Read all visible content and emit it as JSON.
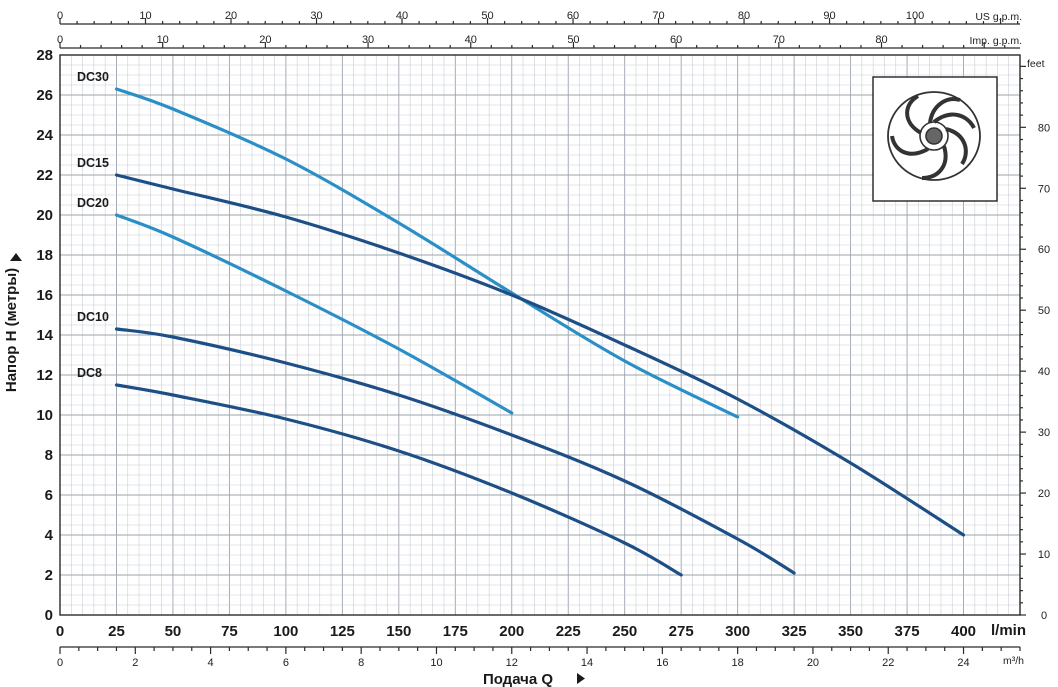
{
  "chart_data": {
    "type": "line",
    "title": "",
    "xlabel": "Подача Q",
    "ylabel": "Напор H (метры)",
    "grid": true,
    "xlim": [
      0,
      425
    ],
    "ylim": [
      0,
      28
    ],
    "x_unit": "l/min",
    "x_ticks": [
      0,
      25,
      50,
      75,
      100,
      125,
      150,
      175,
      200,
      225,
      250,
      275,
      300,
      325,
      350,
      375,
      400
    ],
    "y_ticks": [
      0,
      2,
      4,
      6,
      8,
      10,
      12,
      14,
      16,
      18,
      20,
      22,
      24,
      26,
      28
    ],
    "secondary_axes": {
      "right_feet": {
        "unit": "feet",
        "ticks": [
          0,
          10,
          20,
          30,
          40,
          50,
          60,
          70,
          80
        ]
      },
      "bottom_m3h": {
        "unit": "m³/h",
        "ticks": [
          0,
          2,
          4,
          6,
          8,
          10,
          12,
          14,
          16,
          18,
          20,
          22,
          24
        ]
      },
      "top_us_gpm": {
        "unit": "US g.p.m.",
        "ticks": [
          0,
          10,
          20,
          30,
          40,
          50,
          60,
          70,
          80,
          90,
          100
        ]
      },
      "top_imp_gpm": {
        "unit": "Imp. g.p.m.",
        "ticks": [
          0,
          10,
          20,
          30,
          40,
          50,
          60,
          70,
          80
        ]
      }
    },
    "series": [
      {
        "name": "DC30",
        "color": "#2a8fc6",
        "x": [
          25,
          50,
          100,
          150,
          200,
          250,
          300
        ],
        "y": [
          26.3,
          25.3,
          22.8,
          19.6,
          16.1,
          12.7,
          9.9
        ]
      },
      {
        "name": "DC15",
        "color": "#1d4f86",
        "x": [
          25,
          50,
          100,
          150,
          200,
          250,
          300,
          350,
          400
        ],
        "y": [
          22.0,
          21.3,
          19.9,
          18.1,
          16.0,
          13.5,
          10.8,
          7.6,
          4.0
        ]
      },
      {
        "name": "DC20",
        "color": "#2a8fc6",
        "x": [
          25,
          50,
          100,
          150,
          200
        ],
        "y": [
          20.0,
          18.9,
          16.2,
          13.3,
          10.1
        ]
      },
      {
        "name": "DC10",
        "color": "#1d4f86",
        "x": [
          25,
          50,
          100,
          150,
          200,
          250,
          300,
          325
        ],
        "y": [
          14.3,
          13.9,
          12.6,
          11.0,
          9.0,
          6.7,
          3.8,
          2.1
        ]
      },
      {
        "name": "DC8",
        "color": "#1d4f86",
        "x": [
          25,
          50,
          100,
          150,
          200,
          250,
          275
        ],
        "y": [
          11.5,
          11.0,
          9.8,
          8.2,
          6.1,
          3.6,
          2.0
        ]
      }
    ]
  }
}
